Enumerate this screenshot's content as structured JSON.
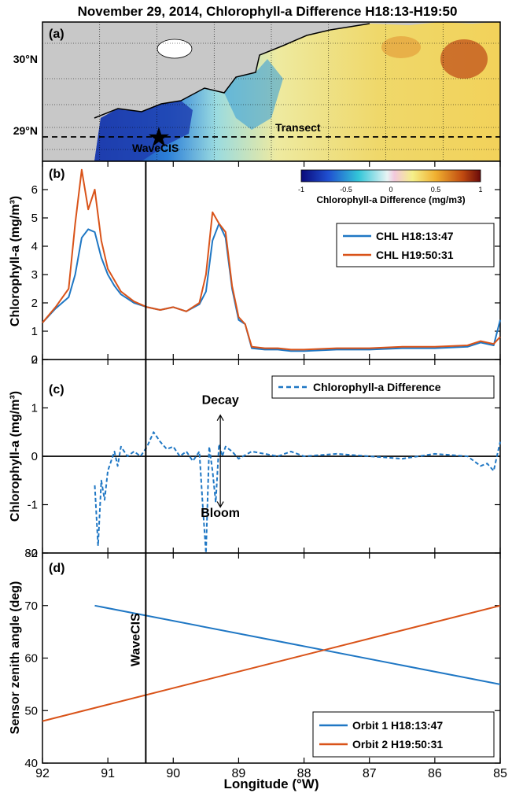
{
  "figure": {
    "title": "November 29, 2014, Chlorophyll-a Difference H18:13-H19:50",
    "xlabel": "Longitude (°W)",
    "xticks": [
      92,
      91,
      90,
      89,
      88,
      87,
      86,
      85
    ],
    "wavecis_longitude": 90.42
  },
  "panel_a": {
    "label": "(a)",
    "lat_labels": [
      {
        "text": "30°N",
        "value": 30
      },
      {
        "text": "29°N",
        "value": 29
      }
    ],
    "transect_label": "Transect",
    "wavecis_label": "WaveCIS",
    "colorbar": {
      "label": "Chlorophyll-a Difference (mg/m3)",
      "ticks": [
        "-1",
        "-0.5",
        "0",
        "0.5",
        "1"
      ]
    },
    "colors": {
      "land": "#c8c8c8",
      "water_low": "#1a2e9e",
      "water_mid": "#e8e08a",
      "water_high": "#b83a1a"
    }
  },
  "chart_data": [
    {
      "type": "line",
      "panel": "(b)",
      "ylabel": "Chlorophyll-a (mg/m³)",
      "ylim": [
        0,
        7
      ],
      "yticks": [
        0,
        1,
        2,
        3,
        4,
        5,
        6
      ],
      "xlim": [
        92,
        85
      ],
      "legend_position": "right",
      "series": [
        {
          "name": "CHL H18:13:47",
          "color": "#1f77c4",
          "x": [
            92.0,
            91.8,
            91.6,
            91.5,
            91.4,
            91.3,
            91.2,
            91.1,
            91.0,
            90.9,
            90.8,
            90.6,
            90.4,
            90.2,
            90.0,
            89.8,
            89.6,
            89.5,
            89.4,
            89.3,
            89.2,
            89.1,
            89.0,
            88.9,
            88.8,
            88.6,
            88.4,
            88.2,
            88.0,
            87.5,
            87.0,
            86.5,
            86.0,
            85.5,
            85.3,
            85.1,
            85.0
          ],
          "y": [
            1.3,
            1.8,
            2.2,
            3.0,
            4.3,
            4.6,
            4.5,
            3.6,
            3.0,
            2.6,
            2.3,
            2.0,
            1.85,
            1.75,
            1.85,
            1.7,
            1.95,
            2.4,
            4.2,
            4.8,
            4.3,
            2.5,
            1.4,
            1.25,
            0.4,
            0.35,
            0.35,
            0.3,
            0.3,
            0.35,
            0.35,
            0.4,
            0.4,
            0.45,
            0.6,
            0.5,
            1.4
          ]
        },
        {
          "name": "CHL H19:50:31",
          "color": "#d95319",
          "x": [
            92.0,
            91.8,
            91.6,
            91.5,
            91.4,
            91.3,
            91.2,
            91.1,
            91.0,
            90.9,
            90.8,
            90.6,
            90.4,
            90.2,
            90.0,
            89.8,
            89.6,
            89.5,
            89.4,
            89.3,
            89.2,
            89.1,
            89.0,
            88.9,
            88.8,
            88.6,
            88.4,
            88.2,
            88.0,
            87.5,
            87.0,
            86.5,
            86.0,
            85.5,
            85.3,
            85.1,
            85.0
          ],
          "y": [
            1.3,
            1.85,
            2.5,
            4.8,
            6.7,
            5.3,
            6.0,
            4.2,
            3.2,
            2.8,
            2.4,
            2.05,
            1.85,
            1.75,
            1.85,
            1.7,
            2.0,
            3.0,
            5.2,
            4.8,
            4.5,
            2.6,
            1.5,
            1.25,
            0.45,
            0.4,
            0.4,
            0.35,
            0.35,
            0.4,
            0.4,
            0.45,
            0.45,
            0.5,
            0.65,
            0.55,
            0.8
          ]
        }
      ]
    },
    {
      "type": "line",
      "panel": "(c)",
      "ylabel": "Chlorophyll-a (mg/m³)",
      "ylim": [
        -2,
        2
      ],
      "yticks": [
        -2,
        -1,
        0,
        1,
        2
      ],
      "xlim": [
        92,
        85
      ],
      "legend_position": "top-right",
      "annotations": {
        "decay": "Decay",
        "bloom": "Bloom",
        "arrow_x": 89.28
      },
      "series": [
        {
          "name": "Chlorophyll-a Difference",
          "color": "#1f77c4",
          "dashed": true,
          "x": [
            91.2,
            91.15,
            91.1,
            91.05,
            91.0,
            90.95,
            90.9,
            90.85,
            90.8,
            90.7,
            90.6,
            90.5,
            90.4,
            90.3,
            90.2,
            90.1,
            90.0,
            89.9,
            89.8,
            89.7,
            89.6,
            89.55,
            89.5,
            89.45,
            89.4,
            89.35,
            89.3,
            89.25,
            89.2,
            89.1,
            89.0,
            88.8,
            88.6,
            88.4,
            88.2,
            88.0,
            87.5,
            87.0,
            86.5,
            86.0,
            85.5,
            85.3,
            85.2,
            85.1,
            85.05,
            85.0
          ],
          "y": [
            -0.6,
            -1.85,
            -0.5,
            -0.9,
            -0.3,
            -0.1,
            0.1,
            -0.2,
            0.2,
            0.0,
            0.1,
            0.0,
            0.2,
            0.5,
            0.3,
            0.15,
            0.2,
            0.0,
            0.1,
            -0.1,
            0.1,
            -1.0,
            -2.0,
            0.2,
            -0.3,
            -0.95,
            0.25,
            0.0,
            0.2,
            0.1,
            -0.05,
            0.1,
            0.05,
            0.0,
            0.1,
            0.0,
            0.05,
            0.0,
            -0.05,
            0.05,
            0.0,
            -0.2,
            -0.15,
            -0.3,
            0.0,
            0.3
          ]
        }
      ]
    },
    {
      "type": "line",
      "panel": "(d)",
      "ylabel": "Sensor zenith angle (deg)",
      "ylim": [
        40,
        80
      ],
      "yticks": [
        40,
        50,
        60,
        70,
        80
      ],
      "xlim": [
        92,
        85
      ],
      "legend_position": "bottom-right",
      "vertical_label": "WaveCIS",
      "series": [
        {
          "name": "Orbit 1 H18:13:47",
          "color": "#1f77c4",
          "x": [
            91.2,
            85.0
          ],
          "y": [
            70,
            55
          ]
        },
        {
          "name": "Orbit 2 H19:50:31",
          "color": "#d95319",
          "x": [
            92.0,
            85.0
          ],
          "y": [
            48,
            70
          ]
        }
      ]
    }
  ]
}
